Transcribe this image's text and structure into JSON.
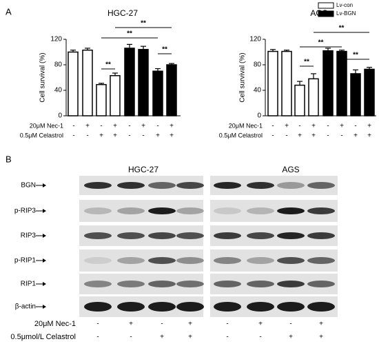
{
  "panel_labels": [
    "A",
    "B"
  ],
  "chart_data": [
    {
      "type": "bar",
      "title": "HGC-27",
      "ylabel": "Cell survival (%)",
      "ylim": [
        0,
        120
      ],
      "yticks": [
        0,
        40,
        80,
        120
      ],
      "series": [
        {
          "color": "#ffffff",
          "values": [
            100,
            103,
            49,
            63
          ],
          "errors": [
            3,
            3,
            2,
            4
          ]
        },
        {
          "color": "#000000",
          "values": [
            106,
            104,
            70,
            80
          ],
          "errors": [
            6,
            5,
            4,
            2
          ]
        }
      ],
      "annotations": [
        "**",
        "**",
        "**",
        "**"
      ],
      "conditions": [
        {
          "label": "20μM Nec-1",
          "signs": [
            "-",
            "+",
            "-",
            "+",
            "-",
            "+",
            "-",
            "+"
          ]
        },
        {
          "label": "0.5μM Celastrol",
          "signs": [
            "-",
            "-",
            "+",
            "+",
            "-",
            "-",
            "+",
            "+"
          ]
        }
      ]
    },
    {
      "type": "bar",
      "title": "AGS",
      "ylabel": "Cell survival (%)",
      "ylim": [
        0,
        120
      ],
      "yticks": [
        0,
        40,
        80,
        120
      ],
      "series": [
        {
          "name": "Lv-con",
          "color": "#ffffff",
          "values": [
            101,
            101,
            48,
            58
          ],
          "errors": [
            3,
            2,
            6,
            8
          ]
        },
        {
          "name": "Lv-BGN",
          "color": "#000000",
          "values": [
            102,
            101,
            66,
            73
          ],
          "errors": [
            4,
            2,
            6,
            3
          ]
        }
      ],
      "annotations": [
        "**",
        "**",
        "**",
        "**"
      ],
      "conditions": [
        {
          "label": "20μM Nec-1",
          "signs": [
            "-",
            "+",
            "-",
            "+",
            "-",
            "+",
            "-",
            "+"
          ]
        },
        {
          "label": "0.5μM Celastrol",
          "signs": [
            "-",
            "-",
            "+",
            "+",
            "-",
            "-",
            "+",
            "+"
          ]
        }
      ]
    }
  ],
  "blot": {
    "cell_lines": [
      "HGC-27",
      "AGS"
    ],
    "proteins": [
      "BGN",
      "p-RIP3",
      "RIP3",
      "p-RIP1",
      "RIP1",
      "β-actin"
    ],
    "conditions": [
      {
        "label": "20μM Nec-1",
        "signs": [
          "-",
          "+",
          "-",
          "+",
          "-",
          "+",
          "-",
          "+"
        ]
      },
      {
        "label": "0.5μmol/L Celastrol",
        "signs": [
          "-",
          "-",
          "+",
          "+",
          "-",
          "-",
          "+",
          "+"
        ]
      }
    ]
  }
}
